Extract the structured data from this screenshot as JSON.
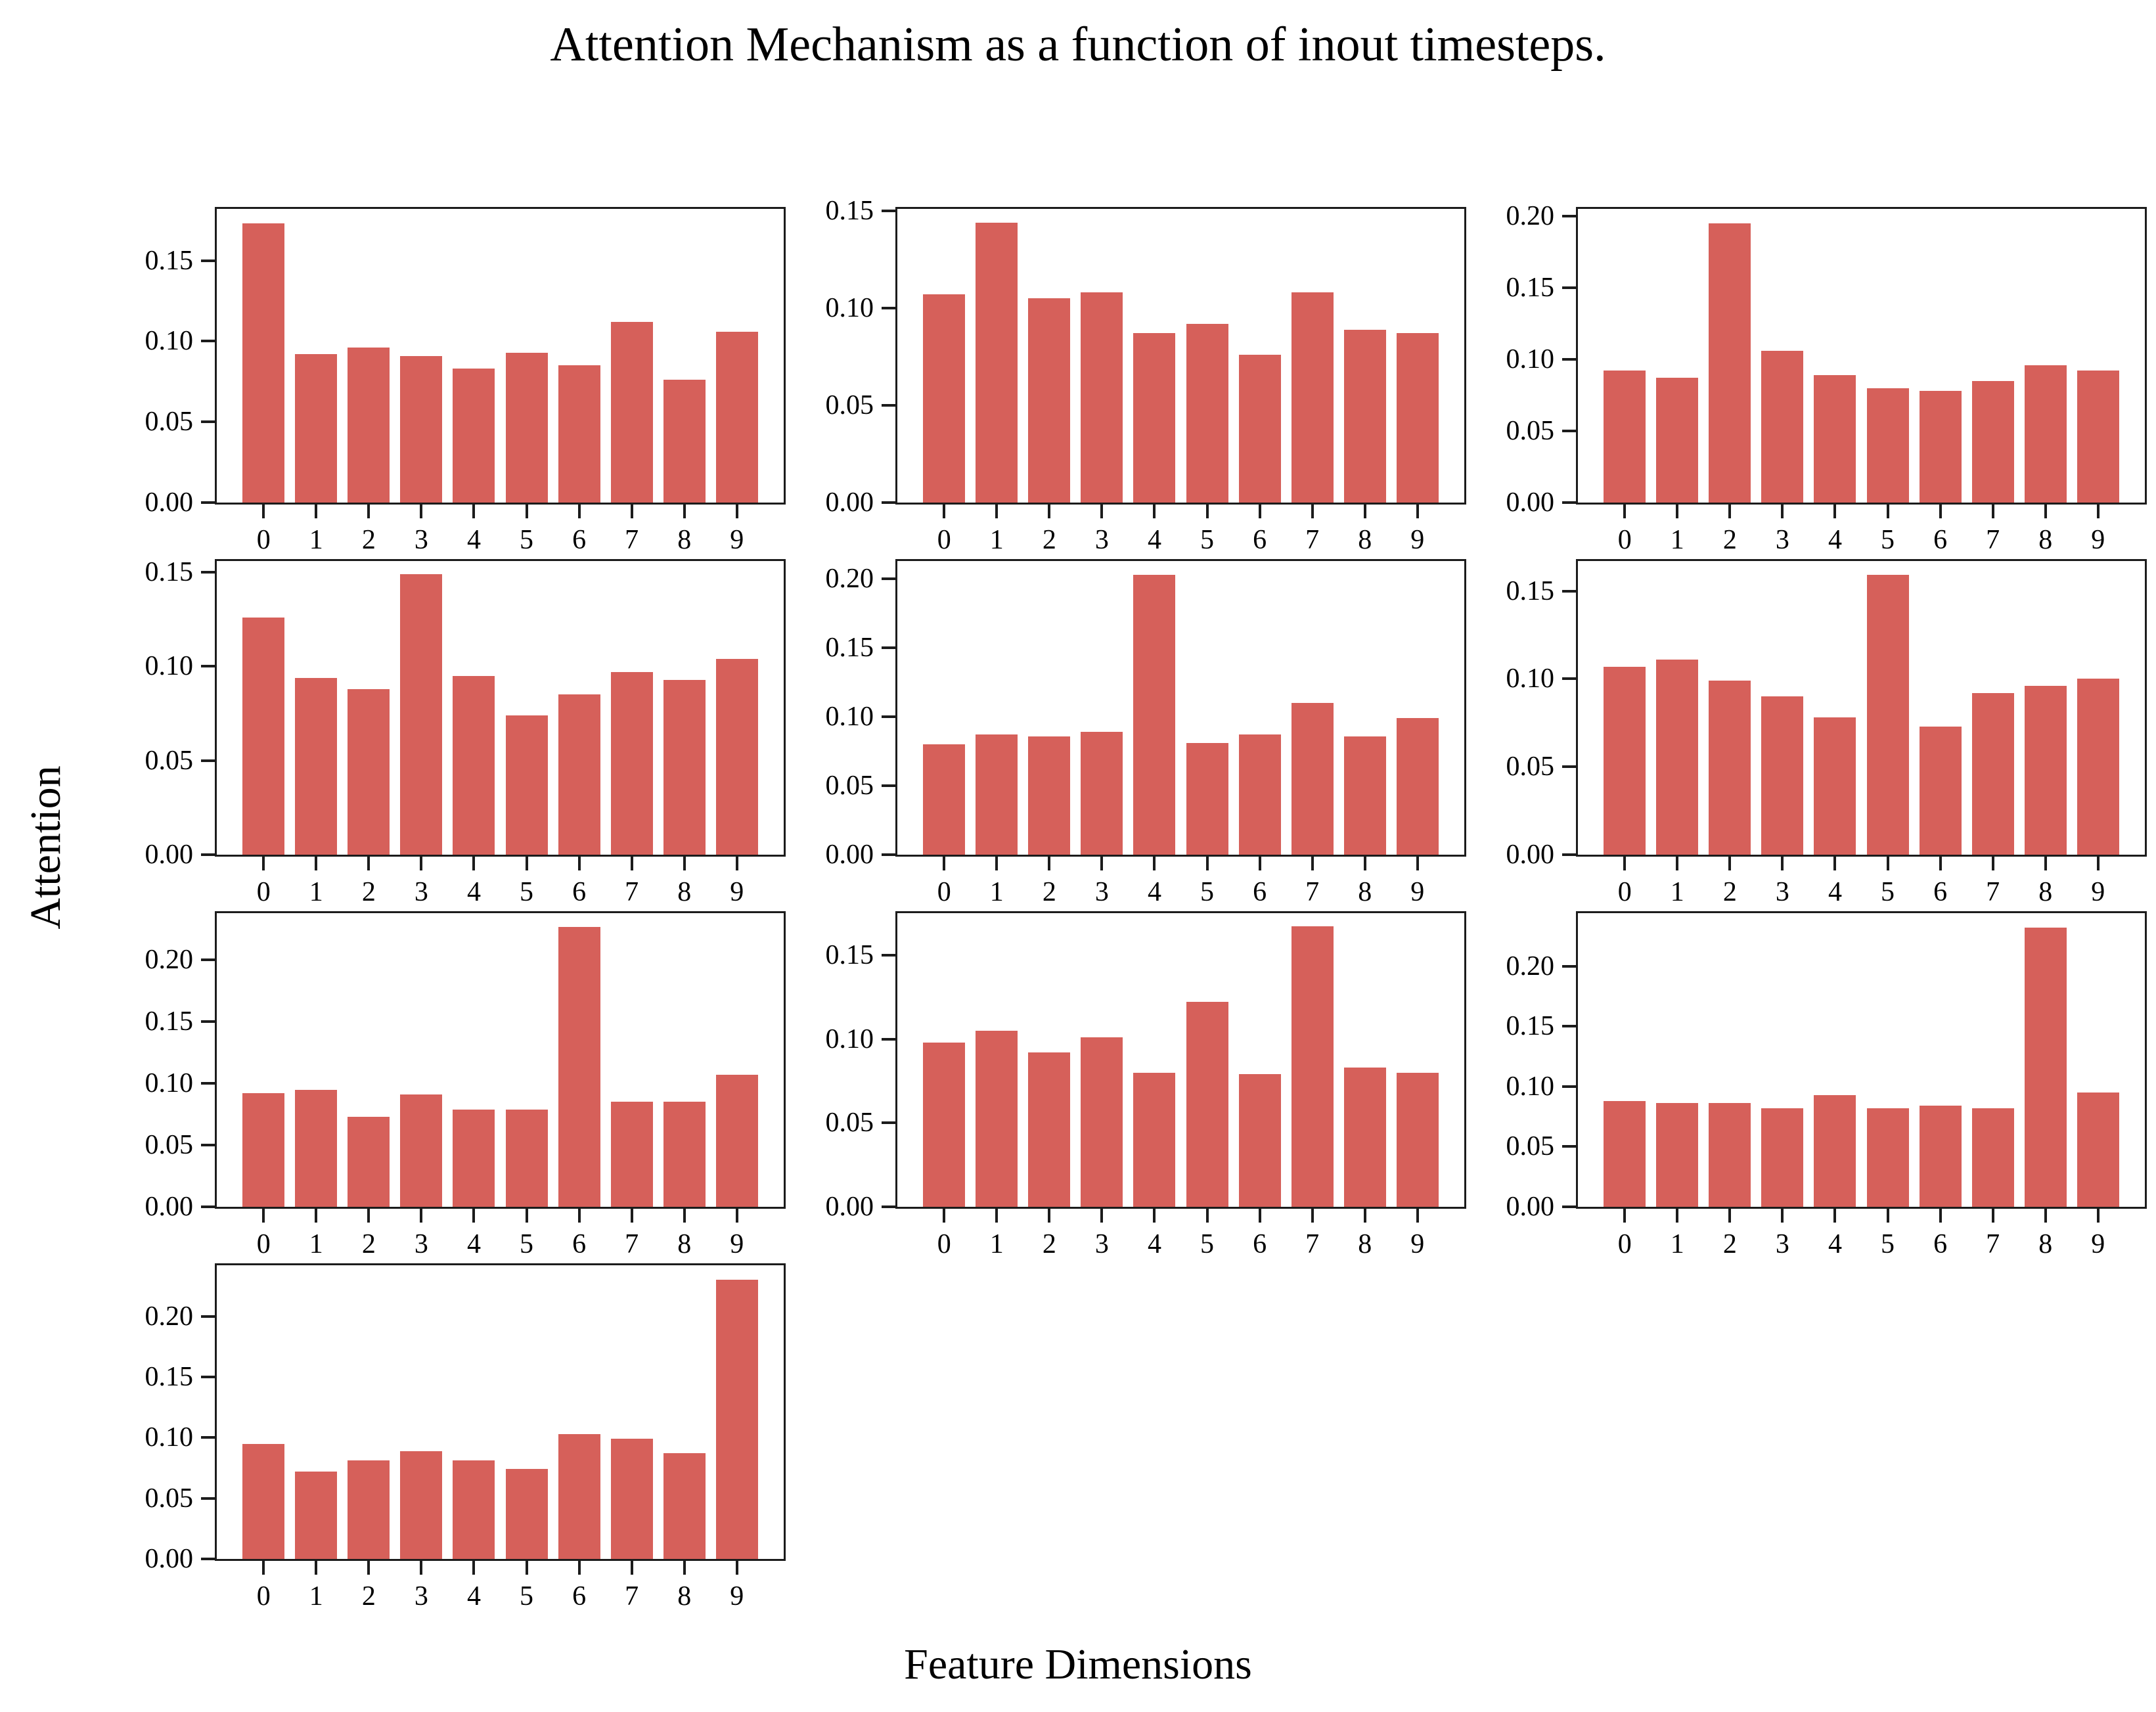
{
  "figure": {
    "title": "Attention Mechanism as a function of inout timesteps.",
    "xlabel": "Feature Dimensions",
    "ylabel": "Attention"
  },
  "colors": {
    "bar": "#d6605a",
    "axis": "#1c1c1c",
    "text": "#000000",
    "background": "#ffffff"
  },
  "chart_data": {
    "type": "bar",
    "title": "Attention Mechanism as a function of inout timesteps.",
    "xlabel": "Feature Dimensions",
    "ylabel": "Attention",
    "grid": false,
    "legend_position": "none",
    "layout": {
      "rows": 4,
      "cols": 3,
      "filled_cells": 10
    },
    "categories": [
      "0",
      "1",
      "2",
      "3",
      "4",
      "5",
      "6",
      "7",
      "8",
      "9"
    ],
    "y_tick_step": 0.05,
    "subplots": [
      {
        "name": "input-timestep-0",
        "peak_index": 0,
        "values": [
          0.173,
          0.092,
          0.096,
          0.091,
          0.083,
          0.093,
          0.085,
          0.112,
          0.076,
          0.106
        ],
        "y_ticks": [
          "0.00",
          "0.05",
          "0.10",
          "0.15"
        ],
        "ylim": [
          0,
          0.182
        ]
      },
      {
        "name": "input-timestep-1",
        "peak_index": 1,
        "values": [
          0.107,
          0.144,
          0.105,
          0.108,
          0.087,
          0.092,
          0.076,
          0.108,
          0.089,
          0.087
        ],
        "y_ticks": [
          "0.00",
          "0.05",
          "0.10",
          "0.15"
        ],
        "ylim": [
          0,
          0.151
        ]
      },
      {
        "name": "input-timestep-2",
        "peak_index": 2,
        "values": [
          0.092,
          0.087,
          0.195,
          0.106,
          0.089,
          0.08,
          0.078,
          0.085,
          0.096,
          0.092
        ],
        "y_ticks": [
          "0.00",
          "0.05",
          "0.10",
          "0.15",
          "0.20"
        ],
        "ylim": [
          0,
          0.205
        ]
      },
      {
        "name": "input-timestep-3",
        "peak_index": 3,
        "values": [
          0.126,
          0.094,
          0.088,
          0.149,
          0.095,
          0.074,
          0.085,
          0.097,
          0.093,
          0.104
        ],
        "y_ticks": [
          "0.00",
          "0.05",
          "0.10",
          "0.15"
        ],
        "ylim": [
          0,
          0.156
        ]
      },
      {
        "name": "input-timestep-4",
        "peak_index": 4,
        "values": [
          0.08,
          0.087,
          0.086,
          0.089,
          0.203,
          0.081,
          0.087,
          0.11,
          0.086,
          0.099
        ],
        "y_ticks": [
          "0.00",
          "0.05",
          "0.10",
          "0.15",
          "0.20"
        ],
        "ylim": [
          0,
          0.213
        ]
      },
      {
        "name": "input-timestep-5",
        "peak_index": 5,
        "values": [
          0.107,
          0.111,
          0.099,
          0.09,
          0.078,
          0.159,
          0.073,
          0.092,
          0.096,
          0.1
        ],
        "y_ticks": [
          "0.00",
          "0.05",
          "0.10",
          "0.15"
        ],
        "ylim": [
          0,
          0.167
        ]
      },
      {
        "name": "input-timestep-6",
        "peak_index": 6,
        "values": [
          0.092,
          0.095,
          0.073,
          0.091,
          0.079,
          0.079,
          0.227,
          0.085,
          0.085,
          0.107
        ],
        "y_ticks": [
          "0.00",
          "0.05",
          "0.10",
          "0.15",
          "0.20"
        ],
        "ylim": [
          0,
          0.238
        ]
      },
      {
        "name": "input-timestep-7",
        "peak_index": 7,
        "values": [
          0.098,
          0.105,
          0.092,
          0.101,
          0.08,
          0.122,
          0.079,
          0.167,
          0.083,
          0.08
        ],
        "y_ticks": [
          "0.00",
          "0.05",
          "0.10",
          "0.15"
        ],
        "ylim": [
          0,
          0.175
        ]
      },
      {
        "name": "input-timestep-8",
        "peak_index": 8,
        "values": [
          0.088,
          0.086,
          0.086,
          0.082,
          0.093,
          0.082,
          0.084,
          0.082,
          0.232,
          0.095
        ],
        "y_ticks": [
          "0.00",
          "0.05",
          "0.10",
          "0.15",
          "0.20"
        ],
        "ylim": [
          0,
          0.244
        ]
      },
      {
        "name": "input-timestep-9",
        "peak_index": 9,
        "values": [
          0.095,
          0.072,
          0.081,
          0.089,
          0.081,
          0.074,
          0.103,
          0.099,
          0.087,
          0.23
        ],
        "y_ticks": [
          "0.00",
          "0.05",
          "0.10",
          "0.15",
          "0.20"
        ],
        "ylim": [
          0,
          0.242
        ]
      }
    ]
  }
}
